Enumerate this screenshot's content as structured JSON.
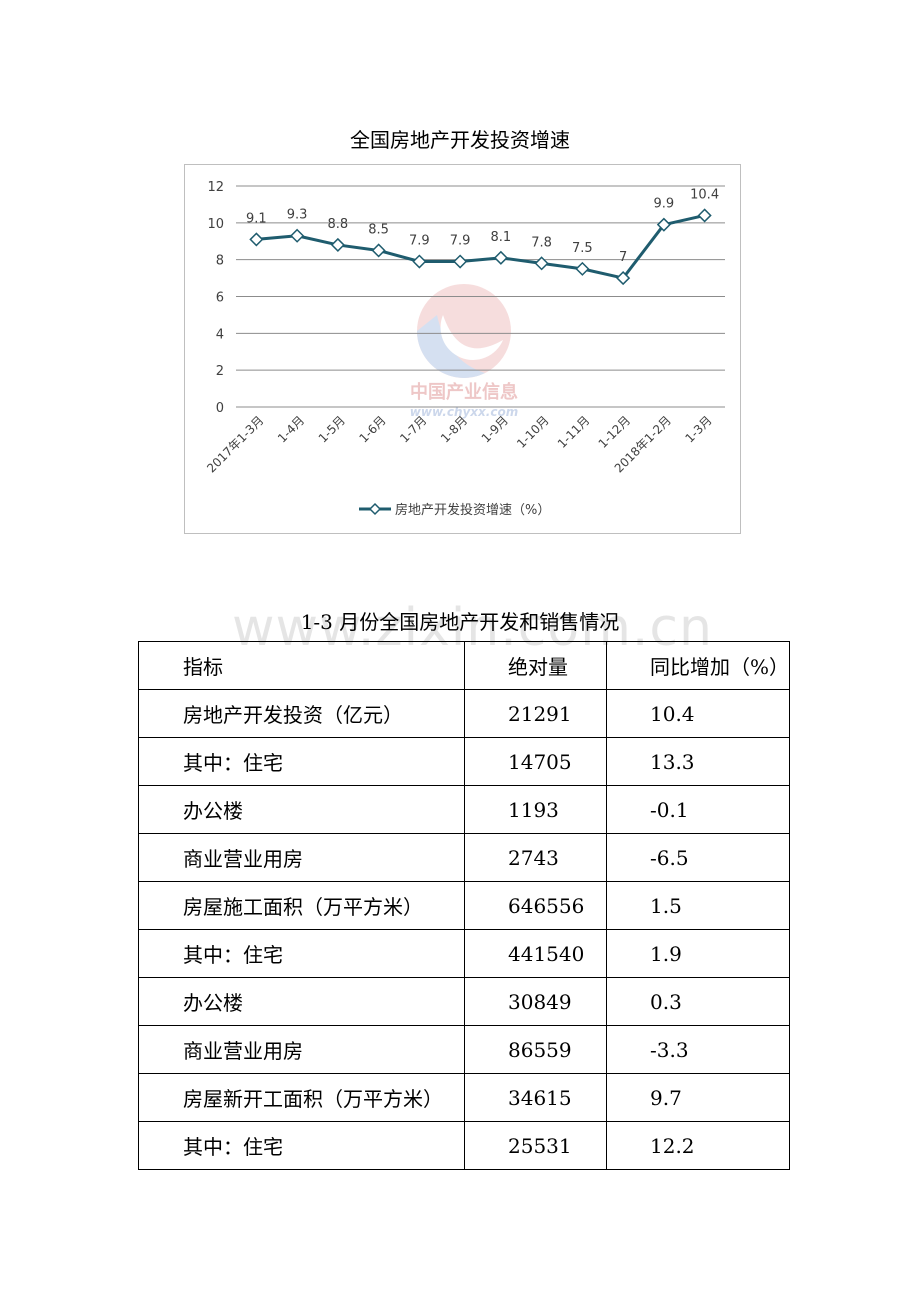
{
  "chart_title": "全国房地产开发投资增速",
  "chart_data": {
    "type": "line",
    "title": "",
    "categories": [
      "2017年1-3月",
      "1-4月",
      "1-5月",
      "1-6月",
      "1-7月",
      "1-8月",
      "1-9月",
      "1-10月",
      "1-11月",
      "1-12月",
      "2018年1-2月",
      "1-3月"
    ],
    "series": [
      {
        "name": "房地产开发投资增速（%）",
        "values": [
          9.1,
          9.3,
          8.8,
          8.5,
          7.9,
          7.9,
          8.1,
          7.8,
          7.5,
          7,
          9.9,
          10.4
        ]
      }
    ],
    "data_labels": [
      "9.1",
      "9.3",
      "8.8",
      "8.5",
      "7.9",
      "7.9",
      "8.1",
      "7.8",
      "7.5",
      "7",
      "9.9",
      "10.4"
    ],
    "y_ticks": [
      "0",
      "2",
      "4",
      "6",
      "8",
      "10",
      "12"
    ],
    "ylim": [
      0,
      12
    ],
    "grid": true,
    "legend_position": "bottom",
    "line_color": "#1f5c6e",
    "marker": "diamond"
  },
  "watermark_logo": {
    "name": "中国产业信息",
    "url": "www.chyxx.com"
  },
  "watermark_text": "www.zixin.com.cn",
  "table": {
    "caption": "1-3 月份全国房地产开发和销售情况",
    "headers": [
      "指标",
      "绝对量",
      "同比增加（%）"
    ],
    "rows": [
      [
        "房地产开发投资（亿元）",
        "21291",
        "10.4"
      ],
      [
        "其中：住宅",
        "14705",
        "13.3"
      ],
      [
        "办公楼",
        "1193",
        "-0.1"
      ],
      [
        "商业营业用房",
        "2743",
        "-6.5"
      ],
      [
        "房屋施工面积（万平方米）",
        "646556",
        "1.5"
      ],
      [
        "其中：住宅",
        "441540",
        "1.9"
      ],
      [
        "办公楼",
        "30849",
        "0.3"
      ],
      [
        "商业营业用房",
        "86559",
        "-3.3"
      ],
      [
        "房屋新开工面积（万平方米）",
        "34615",
        "9.7"
      ],
      [
        "其中：住宅",
        "25531",
        "12.2"
      ]
    ]
  }
}
